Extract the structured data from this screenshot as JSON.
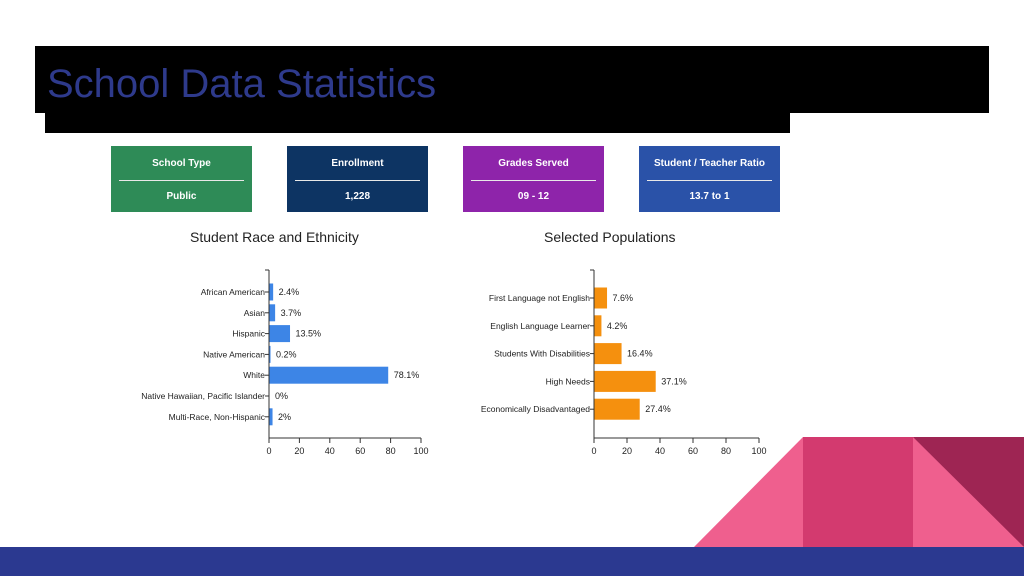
{
  "slide": {
    "title": "School Data Statistics"
  },
  "cards": [
    {
      "label": "School Type",
      "value": "Public",
      "color": "#2e8b57"
    },
    {
      "label": "Enrollment",
      "value": "1,228",
      "color": "#0d3463"
    },
    {
      "label": "Grades Served",
      "value": "09 - 12",
      "color": "#8e24aa"
    },
    {
      "label": "Student / Teacher Ratio",
      "value": "13.7 to 1",
      "color": "#2a52a8"
    }
  ],
  "decor_colors": [
    "#ef5f8e",
    "#d33a6f",
    "#9e2553"
  ],
  "chart_data": [
    {
      "type": "bar",
      "orientation": "horizontal",
      "title": "Student Race and Ethnicity",
      "categories": [
        "African American",
        "Asian",
        "Hispanic",
        "Native American",
        "White",
        "Native Hawaiian, Pacific Islander",
        "Multi-Race, Non-Hispanic"
      ],
      "values": [
        2.4,
        3.7,
        13.5,
        0.2,
        78.1,
        0,
        2
      ],
      "data_labels": [
        "2.4%",
        "3.7%",
        "13.5%",
        "0.2%",
        "78.1%",
        "0%",
        "2%"
      ],
      "xlim": [
        0,
        100
      ],
      "xticks": [
        0,
        20,
        40,
        60,
        80,
        100
      ],
      "color": "#3d85e6",
      "grid": false,
      "legend": "none"
    },
    {
      "type": "bar",
      "orientation": "horizontal",
      "title": "Selected Populations",
      "categories": [
        "First Language not English",
        "English Language Learner",
        "Students With Disabilities",
        "High Needs",
        "Economically Disadvantaged"
      ],
      "values": [
        7.6,
        4.2,
        16.4,
        37.1,
        27.4
      ],
      "data_labels": [
        "7.6%",
        "4.2%",
        "16.4%",
        "37.1%",
        "27.4%"
      ],
      "xlim": [
        0,
        100
      ],
      "xticks": [
        0,
        20,
        40,
        60,
        80,
        100
      ],
      "color": "#f5900e",
      "grid": false,
      "legend": "none"
    }
  ]
}
